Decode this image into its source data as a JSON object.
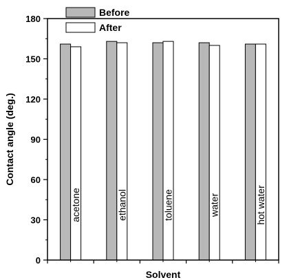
{
  "chart_data": {
    "type": "bar",
    "categories": [
      "acetone",
      "ethanol",
      "toluene",
      "water",
      "hot water"
    ],
    "series": [
      {
        "name": "Before",
        "values": [
          161,
          163,
          162,
          162,
          161
        ],
        "color": "#b8b8b8"
      },
      {
        "name": "After",
        "values": [
          159,
          162,
          163,
          160,
          161
        ],
        "color": "#ffffff"
      }
    ],
    "xlabel": "Solvent",
    "ylabel": "Contact angle (deg.)",
    "ylim": [
      0,
      180
    ],
    "yticks": [
      0,
      30,
      60,
      90,
      120,
      150,
      180
    ],
    "grid": false,
    "legend_position": "top-left"
  }
}
